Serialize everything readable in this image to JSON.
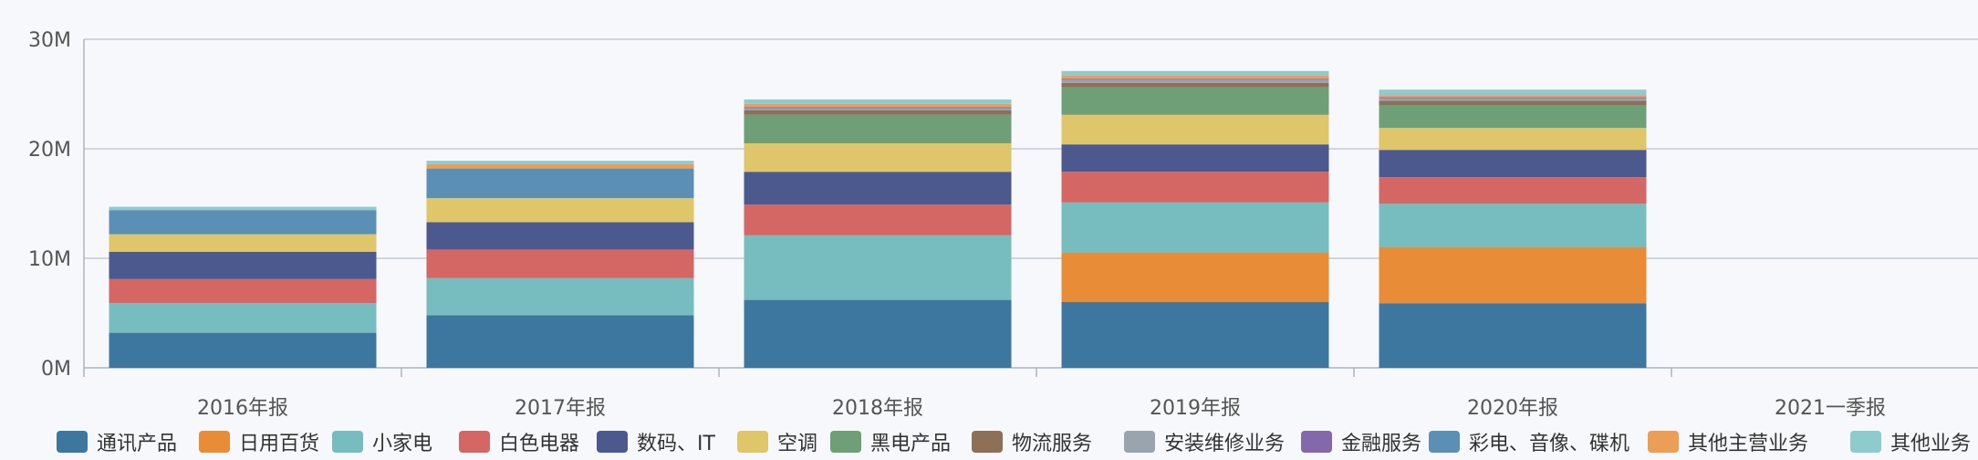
{
  "chart_data": {
    "type": "bar",
    "stacked": true,
    "categories": [
      "2016年报",
      "2017年报",
      "2018年报",
      "2019年报",
      "2020年报",
      "2021一季报"
    ],
    "yticks": [
      "0M",
      "10M",
      "20M",
      "30M"
    ],
    "ylim": [
      0,
      30
    ],
    "unit": "M",
    "grid": true,
    "legend_position": "bottom",
    "series": [
      {
        "name": "通讯产品",
        "color": "#3d77a0",
        "values": [
          3.2,
          4.8,
          6.2,
          6.0,
          5.9,
          0
        ]
      },
      {
        "name": "日用百货",
        "color": "#e88c38",
        "values": [
          0,
          0,
          0,
          4.5,
          5.1,
          0
        ]
      },
      {
        "name": "小家电",
        "color": "#77bcbf",
        "values": [
          2.7,
          3.4,
          5.9,
          4.6,
          4.0,
          0
        ]
      },
      {
        "name": "白色电器",
        "color": "#d46663",
        "values": [
          2.2,
          2.6,
          2.8,
          2.8,
          2.4,
          0
        ]
      },
      {
        "name": "数码、IT",
        "color": "#4b598e",
        "values": [
          2.5,
          2.5,
          3.0,
          2.5,
          2.5,
          0
        ]
      },
      {
        "name": "空调",
        "color": "#dfc66b",
        "values": [
          1.6,
          2.2,
          2.6,
          2.7,
          2.0,
          0
        ]
      },
      {
        "name": "黑电产品",
        "color": "#6e9f76",
        "values": [
          0,
          0,
          2.6,
          2.5,
          2.1,
          0
        ]
      },
      {
        "name": "物流服务",
        "color": "#8e6f58",
        "values": [
          0,
          0,
          0.4,
          0.4,
          0.4,
          0
        ]
      },
      {
        "name": "安装维修业务",
        "color": "#9aa4ae",
        "values": [
          0,
          0,
          0.2,
          0.3,
          0.2,
          0
        ]
      },
      {
        "name": "金融服务",
        "color": "#8368ab",
        "values": [
          0,
          0,
          0.1,
          0.1,
          0.1,
          0
        ]
      },
      {
        "name": "彩电、音像、碟机",
        "color": "#5b8fb6",
        "values": [
          2.2,
          2.7,
          0,
          0,
          0,
          0
        ]
      },
      {
        "name": "其他主营业务",
        "color": "#ec9d56",
        "values": [
          0,
          0.4,
          0.3,
          0.3,
          0.2,
          0
        ]
      },
      {
        "name": "其他业务",
        "color": "#8ecbce",
        "values": [
          0.3,
          0.3,
          0.4,
          0.4,
          0.5,
          0
        ]
      }
    ]
  }
}
